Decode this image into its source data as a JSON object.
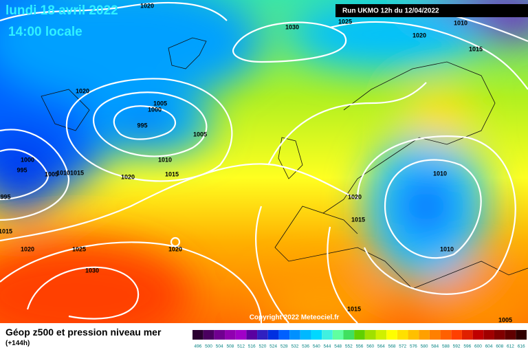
{
  "header": {
    "date": "lundi 18 avril 2022",
    "time": "14:00 locale",
    "run": "Run UKMO 12h du 12/04/2022"
  },
  "copyright": "Copyright 2022 Meteociel.fr",
  "footer": {
    "title": "Géop z500 et pression niveau mer",
    "lead": "(+144h)"
  },
  "isobar_labels": [
    "1020",
    "1030",
    "1025",
    "1020",
    "1010",
    "1015",
    "1020",
    "1005",
    "1000",
    "995",
    "1005",
    "1010",
    "1015",
    "1020",
    "1000",
    "995",
    "1005",
    "1010",
    "1015",
    "1020",
    "1015",
    "1010",
    "1010",
    "1020",
    "1025",
    "1030",
    "1020",
    "1015",
    "1005",
    "1015",
    "995"
  ],
  "legend": {
    "values": [
      496,
      500,
      504,
      508,
      512,
      516,
      520,
      524,
      528,
      532,
      536,
      540,
      544,
      548,
      552,
      556,
      560,
      564,
      568,
      572,
      576,
      580,
      584,
      588,
      592,
      596,
      600,
      604,
      608,
      612,
      616
    ],
    "colors": [
      "#2a0030",
      "#4a0060",
      "#700090",
      "#9000b0",
      "#a000c8",
      "#5a00a0",
      "#3020c0",
      "#0030e0",
      "#0060ff",
      "#0090ff",
      "#00b8ff",
      "#00d8ff",
      "#40f0e0",
      "#60ffa0",
      "#40e060",
      "#60d000",
      "#a0e000",
      "#d0f000",
      "#ffff00",
      "#ffe000",
      "#ffc000",
      "#ffa000",
      "#ff8000",
      "#ff6000",
      "#ff4000",
      "#e02000",
      "#c00000",
      "#a00000",
      "#800000",
      "#600000",
      "#300000"
    ]
  }
}
